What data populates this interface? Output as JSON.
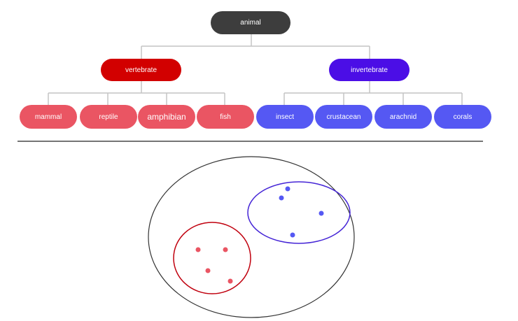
{
  "colors": {
    "root": "#3d3d3d",
    "vertebrate": "#d20000",
    "vertebrate_leaf": "#ea5563",
    "invertebrate": "#4b0ee6",
    "invertebrate_leaf": "#5558f3",
    "connector": "#c4c4c4",
    "divider": "#222222",
    "outer_set": "#333333",
    "vertebrate_set": "#c0000e",
    "invertebrate_set": "#4525d6",
    "vertebrate_dot": "#ea5563",
    "invertebrate_dot": "#5558f3"
  },
  "tree": {
    "root": {
      "label": "animal"
    },
    "vertebrate": {
      "label": "vertebrate",
      "children": [
        "mammal",
        "reptile",
        "amphibian",
        "fish"
      ]
    },
    "invertebrate": {
      "label": "invertebrate",
      "children": [
        "insect",
        "crustacean",
        "arachnid",
        "corals"
      ]
    }
  },
  "sets": {
    "vertebrate_member_count": 4,
    "invertebrate_member_count": 4
  }
}
